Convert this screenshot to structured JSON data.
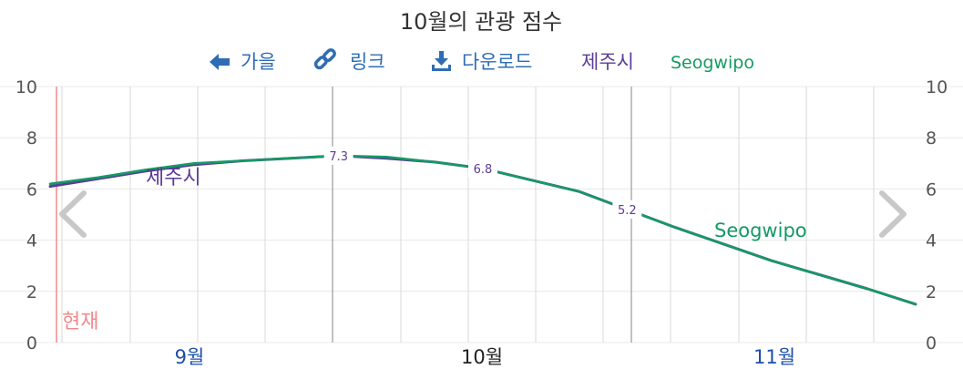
{
  "title": "10월의 관광 점수",
  "nav": {
    "back_label": "가을",
    "back_icon": "arrow-left-icon",
    "link_label": "링크",
    "link_icon": "link-icon",
    "download_label": "다운로드",
    "download_icon": "download-icon",
    "nav_color": "#2e6db4"
  },
  "now_label": "현재",
  "now_color": "#f08a8a",
  "prev_icon": "chevron-left-icon",
  "next_icon": "chevron-right-icon",
  "chart_data": {
    "type": "line",
    "ylim": [
      0,
      10
    ],
    "y_ticks": [
      "0",
      "2",
      "4",
      "6",
      "8",
      "10"
    ],
    "months": [
      {
        "label": "9월",
        "color": "#1d4fa8"
      },
      {
        "label": "10월",
        "color": "#222222"
      },
      {
        "label": "11월",
        "color": "#1d4fa8"
      }
    ],
    "grid": true,
    "series": [
      {
        "name": "제주시",
        "color": "#5c3c96",
        "values": [
          6.1,
          6.4,
          6.7,
          6.95,
          7.1,
          7.2,
          7.3,
          7.2,
          7.05,
          6.8,
          6.35,
          5.9,
          5.2,
          4.5,
          3.85,
          3.2,
          2.65,
          2.1,
          1.5
        ]
      },
      {
        "name": "Seogwipo",
        "color": "#149a64",
        "values": [
          6.2,
          6.45,
          6.75,
          7.0,
          7.1,
          7.2,
          7.3,
          7.25,
          7.05,
          6.8,
          6.35,
          5.9,
          5.2,
          4.5,
          3.85,
          3.2,
          2.65,
          2.1,
          1.5
        ]
      }
    ],
    "data_labels": [
      {
        "index": 6,
        "text": "7.3"
      },
      {
        "index": 9,
        "text": "6.8"
      },
      {
        "index": 12,
        "text": "5.2"
      }
    ]
  }
}
